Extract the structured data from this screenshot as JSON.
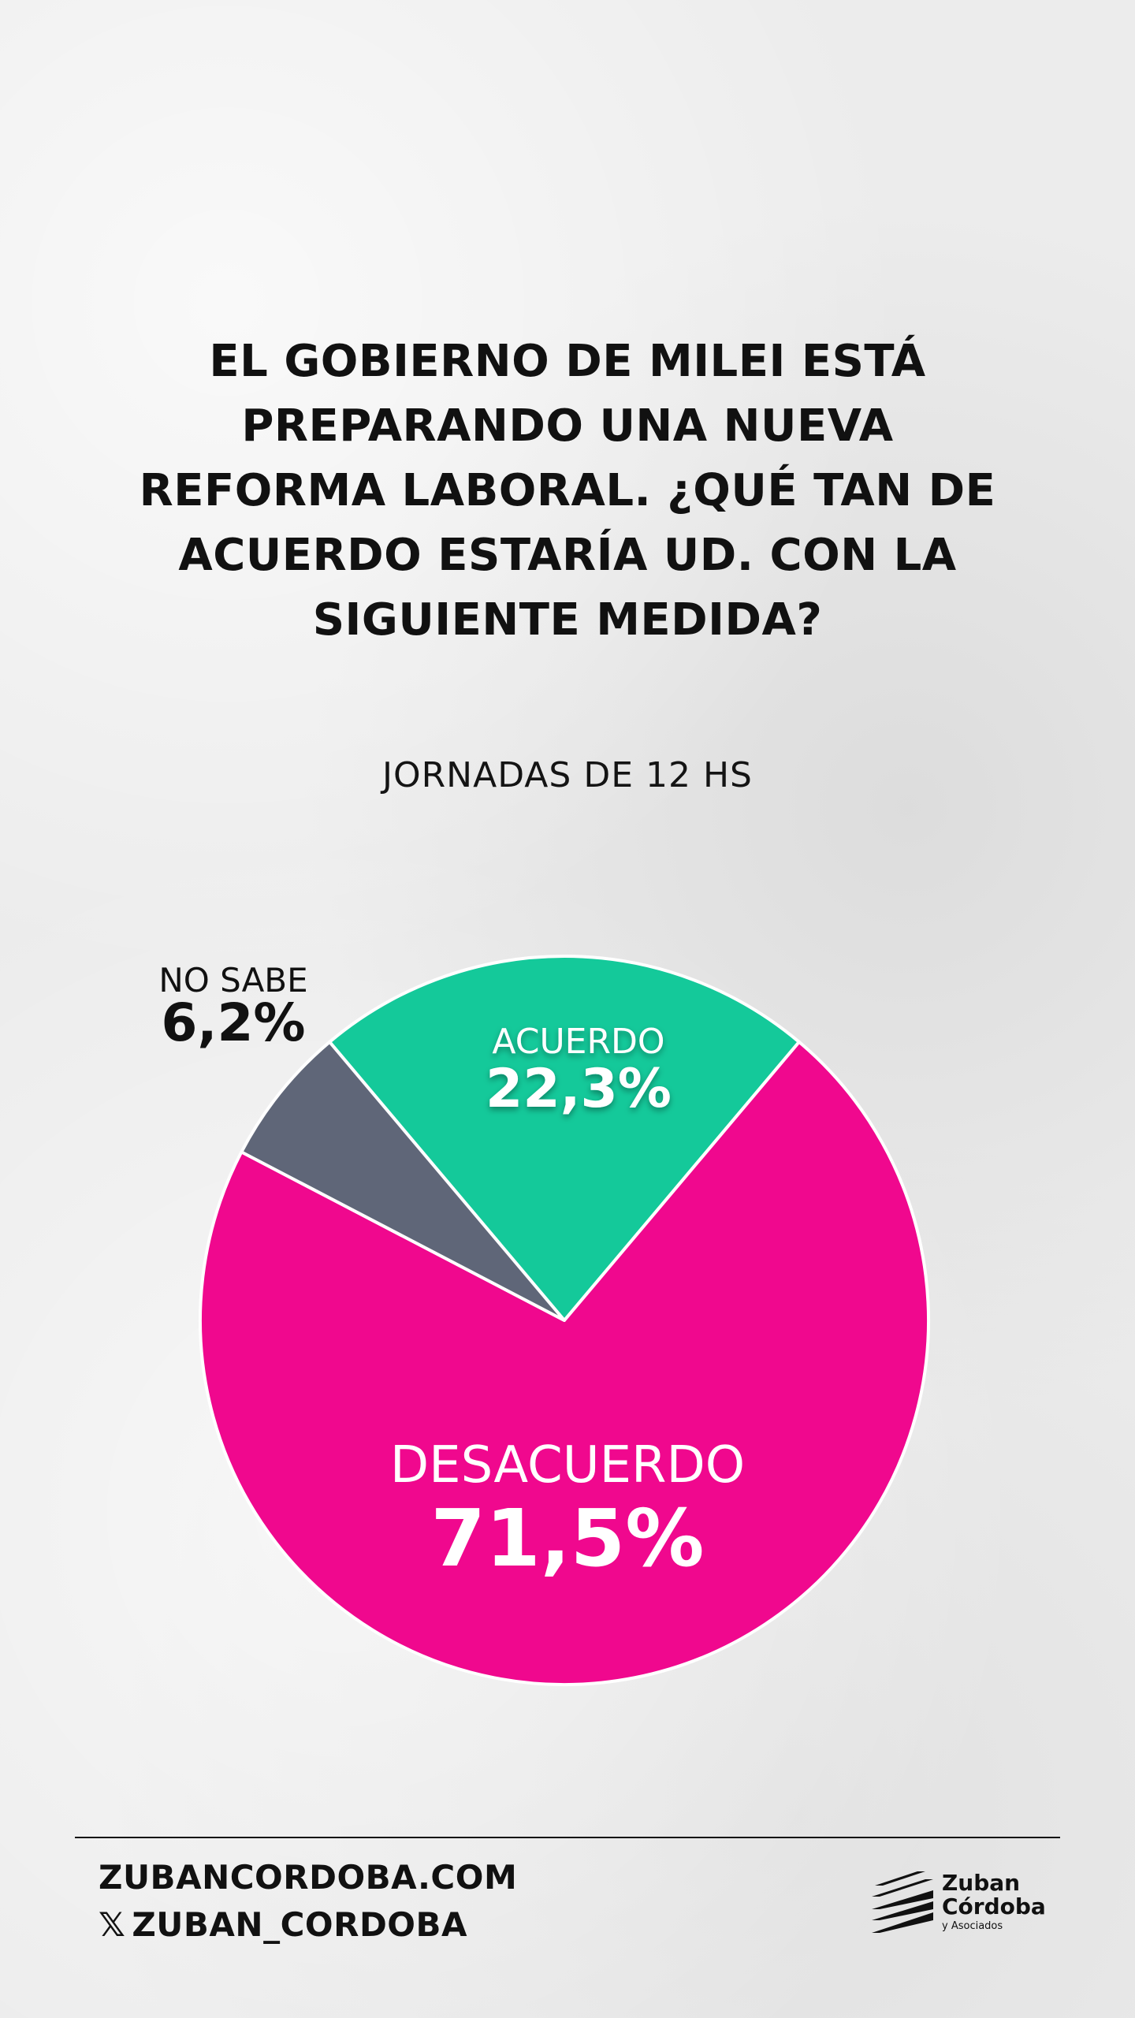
{
  "title_lines": [
    "EL GOBIERNO DE MILEI ESTÁ",
    "PREPARANDO UNA NUEVA",
    "REFORMA LABORAL. ¿QUÉ TAN DE",
    "ACUERDO ESTARÍA UD. CON LA",
    "SIGUIENTE MEDIDA?"
  ],
  "subtitle": "JORNADAS DE 12 HS",
  "chart_data": {
    "type": "pie",
    "slices": [
      {
        "label": "ACUERDO",
        "display": "22,3%",
        "value": 22.3,
        "color": "#14c99a"
      },
      {
        "label": "DESACUERDO",
        "display": "71,5%",
        "value": 71.5,
        "color": "#f0088e"
      },
      {
        "label": "NO SABE",
        "display": "6,2%",
        "value": 6.2,
        "color": "#5f6678"
      }
    ]
  },
  "footer": {
    "website": "ZUBANCORDOBA.COM",
    "x_icon": "x-logo-icon",
    "handle": "ZUBAN_CORDOBA"
  },
  "logo": {
    "line1": "Zuban",
    "line2": "Córdoba",
    "line3": "y Asociados",
    "icon": "stripes-logo-icon"
  }
}
